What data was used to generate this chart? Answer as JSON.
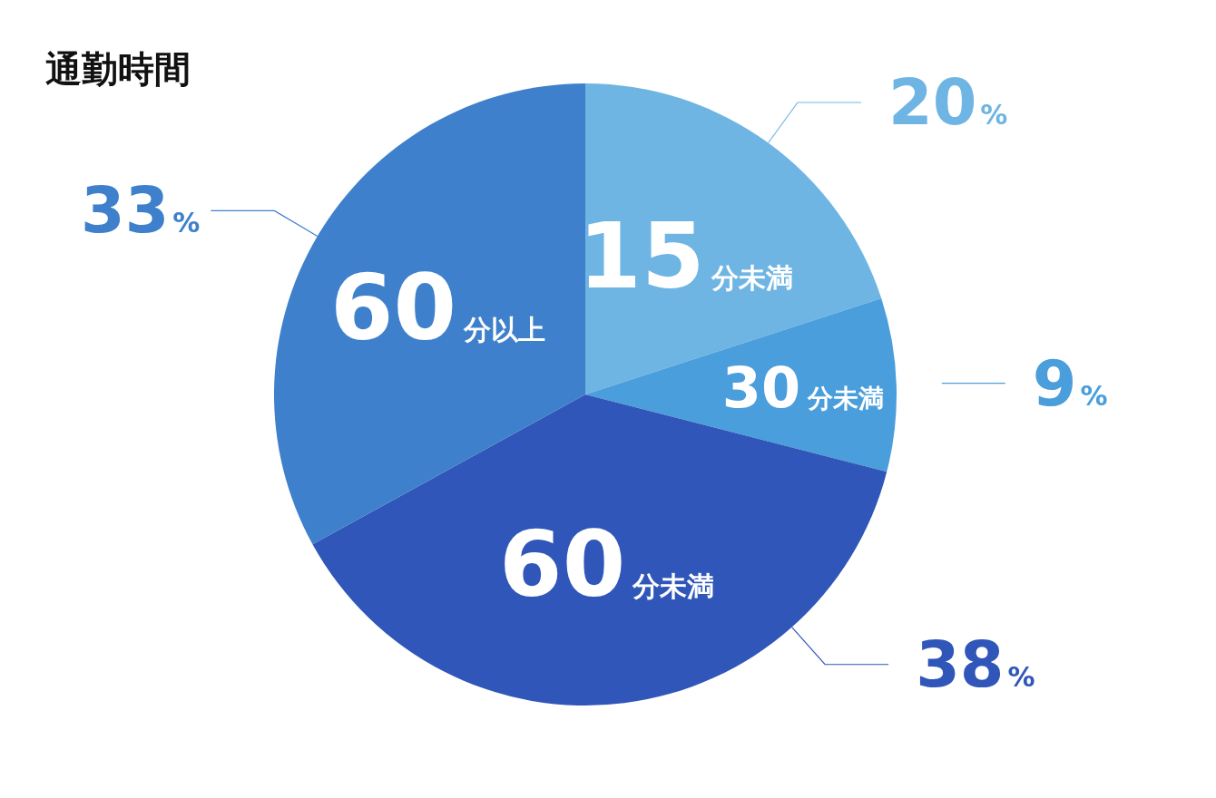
{
  "chart_data": {
    "type": "pie",
    "title": "通勤時間",
    "categories": [
      "15分未満",
      "30分未満",
      "60分未満",
      "60分以上"
    ],
    "values": [
      20,
      9,
      38,
      33
    ],
    "colors": [
      "#6eb5e4",
      "#4a9edc",
      "#2f56b8",
      "#3e80cb"
    ],
    "value_labels": [
      "20%",
      "9%",
      "38%",
      "33%"
    ]
  }
}
